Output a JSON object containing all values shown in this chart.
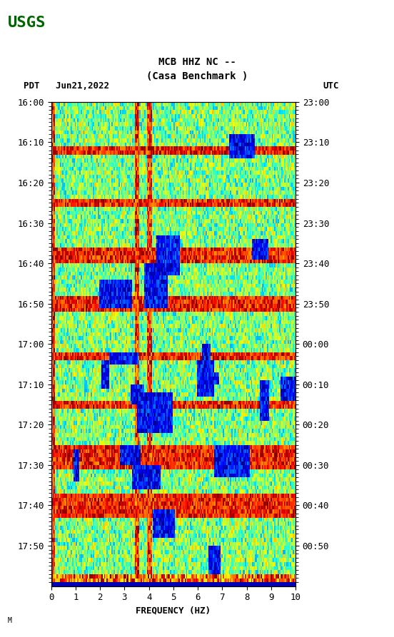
{
  "title_line1": "MCB HHZ NC --",
  "title_line2": "(Casa Benchmark )",
  "left_label": "PDT   Jun21,2022",
  "right_label": "UTC",
  "xlabel": "FREQUENCY (HZ)",
  "freq_min": 0,
  "freq_max": 10,
  "freq_ticks": [
    0,
    1,
    2,
    3,
    4,
    5,
    6,
    7,
    8,
    9,
    10
  ],
  "time_left_labels": [
    "16:00",
    "16:10",
    "16:20",
    "16:30",
    "16:40",
    "16:50",
    "17:00",
    "17:10",
    "17:20",
    "17:30",
    "17:40",
    "17:50"
  ],
  "time_right_labels": [
    "23:00",
    "23:10",
    "23:20",
    "23:30",
    "23:40",
    "23:50",
    "00:00",
    "00:10",
    "00:20",
    "00:30",
    "00:40",
    "00:50"
  ],
  "n_time_rows": 120,
  "n_freq_cols": 200,
  "background_color": "#ffffff",
  "colormap": "jet",
  "fig_width": 5.52,
  "fig_height": 8.93,
  "logo_color": "#006400",
  "annotation": "M"
}
